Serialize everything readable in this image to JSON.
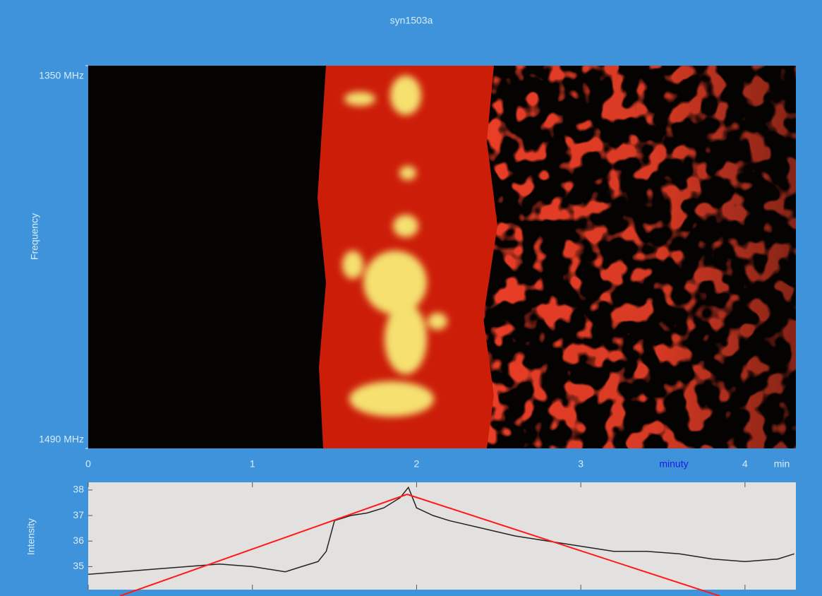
{
  "chart_data": [
    {
      "type": "spectrogram",
      "title": "syn1503a",
      "ylabel": "Frequency",
      "ylim": [
        1350,
        1490
      ],
      "yticks": [
        {
          "value": 1350,
          "label": "1350 MHz"
        },
        {
          "value": 1490,
          "label": "1490 MHz"
        }
      ],
      "xlim": [
        0,
        4.31
      ],
      "xticks": [
        0,
        1,
        2,
        3,
        4
      ],
      "x_unit": "min",
      "annotation": "minuty"
    },
    {
      "type": "line",
      "ylabel": "Intensity",
      "xlim": [
        0,
        4.31
      ],
      "ylim": [
        34.1,
        38.3
      ],
      "yticks": [
        35,
        36,
        37,
        38
      ],
      "x": [
        0,
        0.2,
        0.4,
        0.6,
        0.8,
        1.0,
        1.2,
        1.3,
        1.4,
        1.45,
        1.5,
        1.6,
        1.7,
        1.8,
        1.9,
        1.95,
        2.0,
        2.1,
        2.2,
        2.4,
        2.6,
        2.8,
        3.0,
        3.2,
        3.4,
        3.6,
        3.8,
        4.0,
        4.2,
        4.3
      ],
      "series": [
        {
          "name": "Intensity",
          "color": "#222222",
          "values": [
            34.7,
            34.8,
            34.9,
            35.0,
            35.1,
            35.0,
            34.8,
            35.0,
            35.2,
            35.6,
            36.8,
            37.0,
            37.1,
            37.3,
            37.7,
            38.1,
            37.3,
            37.0,
            36.8,
            36.5,
            36.2,
            36.0,
            35.8,
            35.6,
            35.6,
            35.5,
            35.3,
            35.2,
            35.3,
            35.5
          ]
        }
      ]
    }
  ]
}
